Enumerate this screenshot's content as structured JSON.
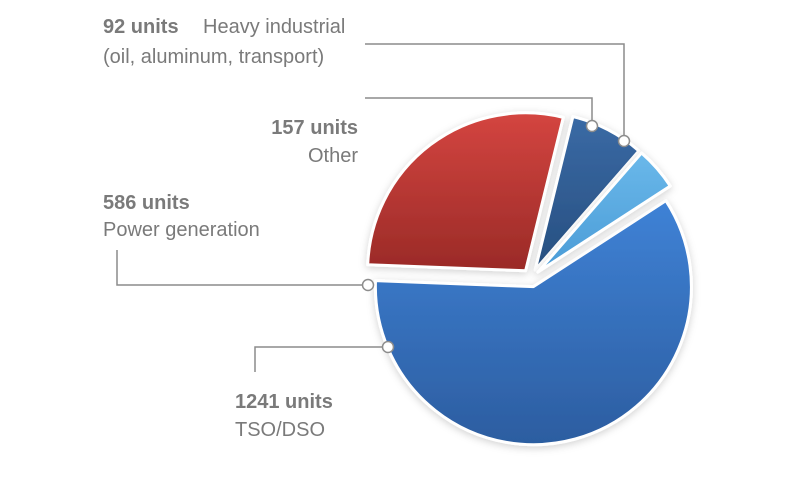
{
  "chart_data": {
    "type": "pie",
    "slices": [
      {
        "value": 1241,
        "value_label": "1241 units",
        "category": "TSO/DSO",
        "color": "#3a78c6"
      },
      {
        "value": 586,
        "value_label": "586 units",
        "category": "Power generation",
        "color": "#c23b38"
      },
      {
        "value": 157,
        "value_label": "157 units",
        "category": "Other",
        "color": "#2f5d93"
      },
      {
        "value": 92,
        "value_label": "92 units",
        "category_lines": [
          "Heavy industrial",
          "(oil, aluminum, transport)"
        ],
        "color": "#5dade2"
      }
    ]
  }
}
